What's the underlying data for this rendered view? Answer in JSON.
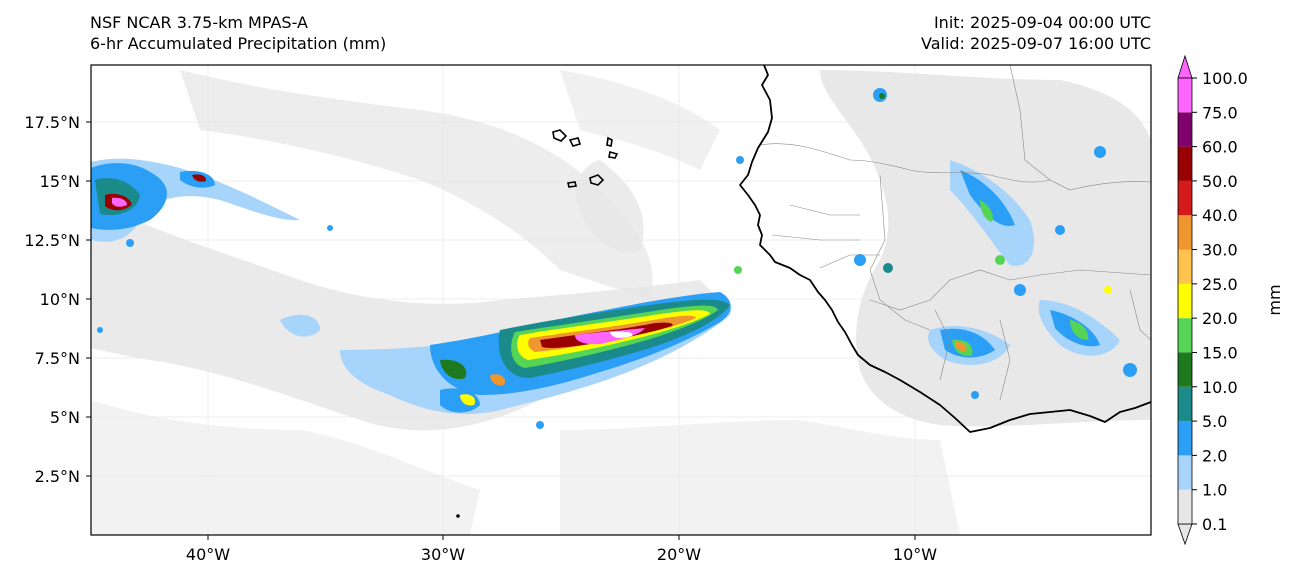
{
  "title": {
    "model": "NSF NCAR 3.75-km MPAS-A",
    "field": "6-hr Accumulated Precipitation (mm)",
    "init": "Init: 2025-09-04 00:00 UTC",
    "valid": "Valid: 2025-09-07 16:00 UTC"
  },
  "axes": {
    "lon_ticks": [
      "40°W",
      "30°W",
      "20°W",
      "10°W"
    ],
    "lat_ticks": [
      "17.5°N",
      "15°N",
      "12.5°N",
      "10°N",
      "7.5°N",
      "5°N",
      "2.5°N"
    ]
  },
  "colorbar": {
    "label": "mm",
    "levels": [
      "0.1",
      "1.0",
      "2.0",
      "5.0",
      "10.0",
      "15.0",
      "20.0",
      "25.0",
      "30.0",
      "40.0",
      "50.0",
      "60.0",
      "75.0",
      "100.0"
    ],
    "colors": [
      "#e6e6e6",
      "#a6d4fa",
      "#2b9ef5",
      "#1a8a8a",
      "#1f7a1f",
      "#55d455",
      "#ffff00",
      "#ffc34d",
      "#f0962e",
      "#d41a1a",
      "#990000",
      "#80006e",
      "#ff66ff"
    ]
  }
}
